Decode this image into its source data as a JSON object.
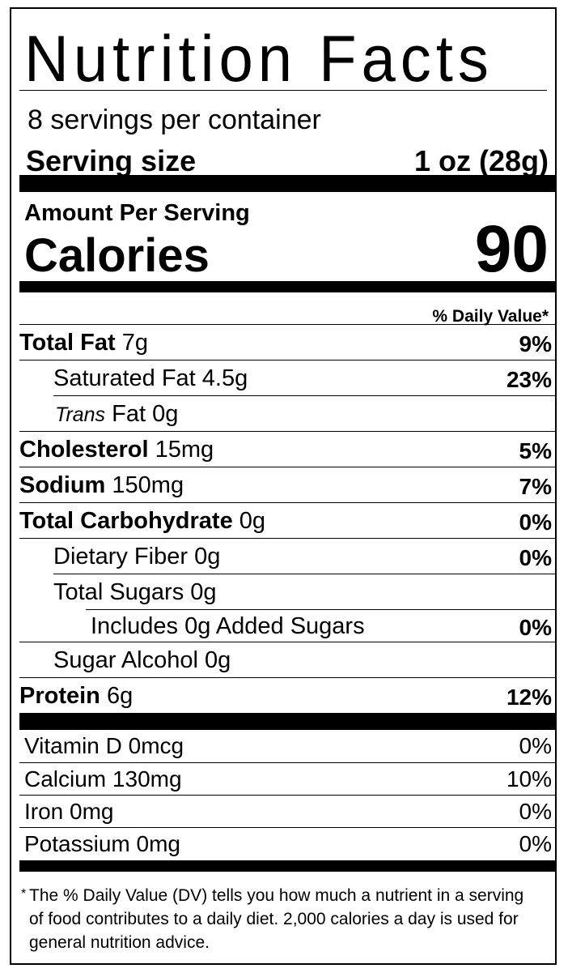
{
  "title": "Nutrition Facts",
  "servings_per_container": "8 servings per container",
  "serving_size": {
    "label": "Serving size",
    "value": "1 oz (28g)"
  },
  "amount_per_serving": "Amount Per Serving",
  "calories": {
    "label": "Calories",
    "value": "90"
  },
  "daily_value_header": "% Daily Value*",
  "nutrients": [
    {
      "name": "Total Fat",
      "amount": "7g",
      "dv": "9%"
    },
    {
      "name": "Saturated Fat",
      "amount": "4.5g",
      "dv": "23%"
    },
    {
      "name": "Trans",
      "name_suffix": "Fat",
      "amount": "0g",
      "dv": ""
    },
    {
      "name": "Cholesterol",
      "amount": "15mg",
      "dv": "5%"
    },
    {
      "name": "Sodium",
      "amount": "150mg",
      "dv": "7%"
    },
    {
      "name": "Total Carbohydrate",
      "amount": "0g",
      "dv": "0%"
    },
    {
      "name": "Dietary Fiber",
      "amount": "0g",
      "dv": "0%"
    },
    {
      "name": "Total Sugars",
      "amount": "0g",
      "dv": ""
    },
    {
      "name": "Includes 0g Added Sugars",
      "amount": "",
      "dv": "0%"
    },
    {
      "name": "Sugar Alcohol",
      "amount": "0g",
      "dv": ""
    },
    {
      "name": "Protein",
      "amount": "6g",
      "dv": "12%"
    }
  ],
  "vitamins": [
    {
      "name": "Vitamin D",
      "amount": "0mcg",
      "dv": "0%"
    },
    {
      "name": "Calcium",
      "amount": "130mg",
      "dv": "10%"
    },
    {
      "name": "Iron",
      "amount": "0mg",
      "dv": "0%"
    },
    {
      "name": "Potassium",
      "amount": "0mg",
      "dv": "0%"
    }
  ],
  "footnote": {
    "marker": "*",
    "text": "The % Daily Value (DV) tells you how much a nutrient in a serving of food contributes to a daily diet. 2,000 calories a day is used for general nutrition advice."
  }
}
